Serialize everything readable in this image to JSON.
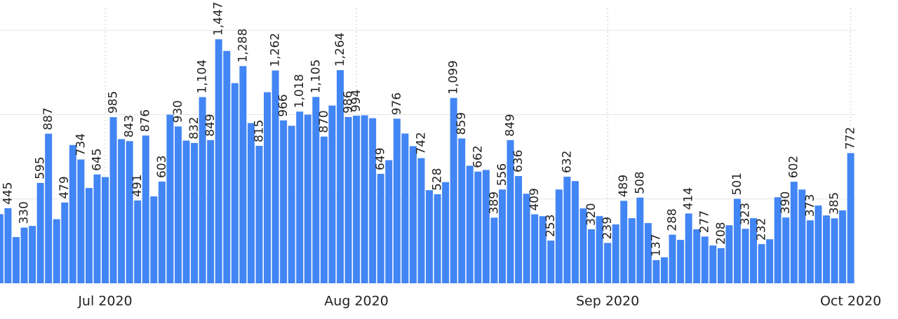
{
  "chart_data": {
    "type": "bar",
    "categories": [
      null,
      null,
      null,
      null,
      null,
      null,
      null,
      null,
      null,
      null,
      null,
      null,
      null,
      "Jul 2020",
      null,
      null,
      null,
      null,
      null,
      null,
      null,
      null,
      null,
      null,
      null,
      null,
      null,
      null,
      null,
      null,
      null,
      null,
      null,
      null,
      null,
      null,
      null,
      null,
      null,
      null,
      null,
      null,
      null,
      null,
      "Aug 2020",
      null,
      null,
      null,
      null,
      null,
      null,
      null,
      null,
      null,
      null,
      null,
      null,
      null,
      null,
      null,
      null,
      null,
      null,
      null,
      null,
      null,
      null,
      null,
      null,
      null,
      null,
      null,
      null,
      null,
      null,
      "Sep 2020",
      null,
      null,
      null,
      null,
      null,
      null,
      null,
      null,
      null,
      null,
      null,
      null,
      null,
      null,
      null,
      null,
      null,
      null,
      null,
      null,
      null,
      null,
      null,
      null,
      null,
      null,
      null,
      null,
      null,
      "Oct 2020"
    ],
    "values": [
      410,
      445,
      274,
      330,
      340,
      595,
      887,
      380,
      479,
      820,
      734,
      565,
      645,
      630,
      985,
      855,
      843,
      491,
      876,
      515,
      603,
      1000,
      930,
      846,
      832,
      1104,
      849,
      1447,
      1378,
      1187,
      1288,
      950,
      815,
      1133,
      1262,
      966,
      934,
      1018,
      1000,
      1105,
      870,
      1054,
      1264,
      986,
      994,
      996,
      979,
      649,
      730,
      976,
      888,
      813,
      742,
      552,
      528,
      600,
      1099,
      859,
      697,
      662,
      672,
      389,
      556,
      849,
      636,
      531,
      409,
      398,
      253,
      556,
      632,
      606,
      444,
      320,
      398,
      239,
      349,
      489,
      386,
      508,
      357,
      137,
      154,
      288,
      257,
      414,
      320,
      277,
      224,
      208,
      344,
      501,
      323,
      386,
      232,
      261,
      510,
      390,
      602,
      556,
      373,
      461,
      402,
      385,
      432,
      772
    ],
    "value_labels": [
      null,
      "445",
      null,
      "330",
      null,
      "595",
      "887",
      null,
      "479",
      null,
      "734",
      null,
      "645",
      null,
      "985",
      null,
      "843",
      "491",
      "876",
      null,
      "603",
      null,
      "930",
      null,
      "832",
      "1,104",
      "849",
      "1,447",
      null,
      null,
      "1,288",
      null,
      "815",
      null,
      "1,262",
      "966",
      null,
      "1,018",
      null,
      "1,105",
      "870",
      null,
      "1,264",
      "986",
      "994",
      null,
      null,
      "649",
      null,
      "976",
      null,
      null,
      "742",
      null,
      "528",
      null,
      "1,099",
      "859",
      null,
      "662",
      null,
      "389",
      "556",
      "849",
      "636",
      null,
      "409",
      null,
      "253",
      null,
      "632",
      null,
      null,
      "320",
      null,
      "239",
      null,
      "489",
      null,
      "508",
      null,
      "137",
      null,
      "288",
      null,
      "414",
      null,
      "277",
      null,
      "208",
      null,
      "501",
      "323",
      null,
      "232",
      null,
      null,
      "390",
      "602",
      null,
      "373",
      null,
      null,
      "385",
      null,
      "772"
    ],
    "color": "#4285f4",
    "ylim": [
      0,
      1680
    ],
    "yticks": [
      0,
      500,
      1000,
      1500
    ],
    "grid": true
  }
}
